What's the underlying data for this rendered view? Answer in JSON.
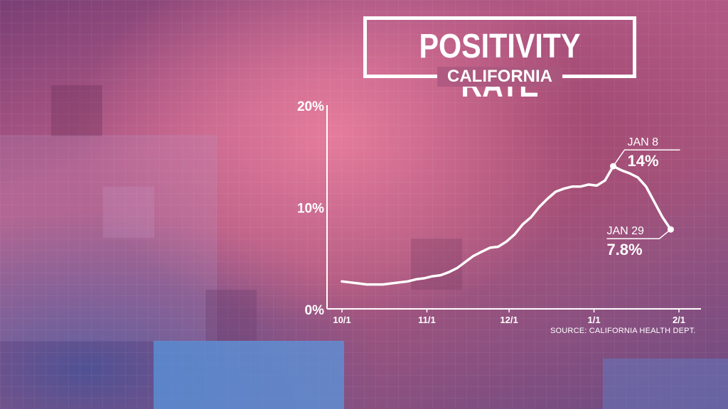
{
  "title": "POSITIVITY RATE",
  "subtitle": "CALIFORNIA",
  "source": "SOURCE: CALIFORNIA HEALTH DEPT.",
  "colors": {
    "line": "#ffffff",
    "text": "#ffffff"
  },
  "chart_data": {
    "type": "line",
    "title": "POSITIVITY RATE",
    "subtitle": "CALIFORNIA",
    "x_start": "2020-10-01",
    "x_end": "2021-02-01",
    "ylim": [
      0,
      20
    ],
    "y_ticks": [
      {
        "value": 0,
        "label": "0%"
      },
      {
        "value": 10,
        "label": "10%"
      },
      {
        "value": 20,
        "label": "20%"
      }
    ],
    "x_ticks": [
      {
        "date": "2020-10-01",
        "label": "10/1"
      },
      {
        "date": "2020-11-01",
        "label": "11/1"
      },
      {
        "date": "2020-12-01",
        "label": "12/1"
      },
      {
        "date": "2021-01-01",
        "label": "1/1"
      },
      {
        "date": "2021-02-01",
        "label": "2/1"
      }
    ],
    "series": [
      {
        "points": [
          [
            "2020-10-01",
            2.7
          ],
          [
            "2020-10-04",
            2.6
          ],
          [
            "2020-10-07",
            2.5
          ],
          [
            "2020-10-10",
            2.4
          ],
          [
            "2020-10-13",
            2.4
          ],
          [
            "2020-10-16",
            2.4
          ],
          [
            "2020-10-19",
            2.5
          ],
          [
            "2020-10-22",
            2.6
          ],
          [
            "2020-10-25",
            2.7
          ],
          [
            "2020-10-28",
            2.9
          ],
          [
            "2020-10-31",
            3.0
          ],
          [
            "2020-11-03",
            3.2
          ],
          [
            "2020-11-06",
            3.3
          ],
          [
            "2020-11-09",
            3.6
          ],
          [
            "2020-11-12",
            4.0
          ],
          [
            "2020-11-15",
            4.6
          ],
          [
            "2020-11-18",
            5.2
          ],
          [
            "2020-11-21",
            5.6
          ],
          [
            "2020-11-24",
            6.0
          ],
          [
            "2020-11-27",
            6.1
          ],
          [
            "2020-11-30",
            6.6
          ],
          [
            "2020-12-03",
            7.3
          ],
          [
            "2020-12-06",
            8.3
          ],
          [
            "2020-12-09",
            9.0
          ],
          [
            "2020-12-12",
            10.0
          ],
          [
            "2020-12-15",
            10.8
          ],
          [
            "2020-12-18",
            11.5
          ],
          [
            "2020-12-21",
            11.8
          ],
          [
            "2020-12-24",
            12.0
          ],
          [
            "2020-12-27",
            12.0
          ],
          [
            "2020-12-30",
            12.2
          ],
          [
            "2021-01-02",
            12.1
          ],
          [
            "2021-01-05",
            12.6
          ],
          [
            "2021-01-08",
            14.0
          ],
          [
            "2021-01-11",
            13.6
          ],
          [
            "2021-01-14",
            13.3
          ],
          [
            "2021-01-17",
            12.9
          ],
          [
            "2021-01-20",
            12.0
          ],
          [
            "2021-01-23",
            10.5
          ],
          [
            "2021-01-26",
            9.0
          ],
          [
            "2021-01-29",
            7.8
          ]
        ]
      }
    ],
    "annotations": [
      {
        "date": "2021-01-08",
        "value": 14.0,
        "label": "JAN 8",
        "value_label": "14%"
      },
      {
        "date": "2021-01-29",
        "value": 7.8,
        "label": "JAN 29",
        "value_label": "7.8%"
      }
    ],
    "source": "SOURCE: CALIFORNIA HEALTH DEPT."
  }
}
